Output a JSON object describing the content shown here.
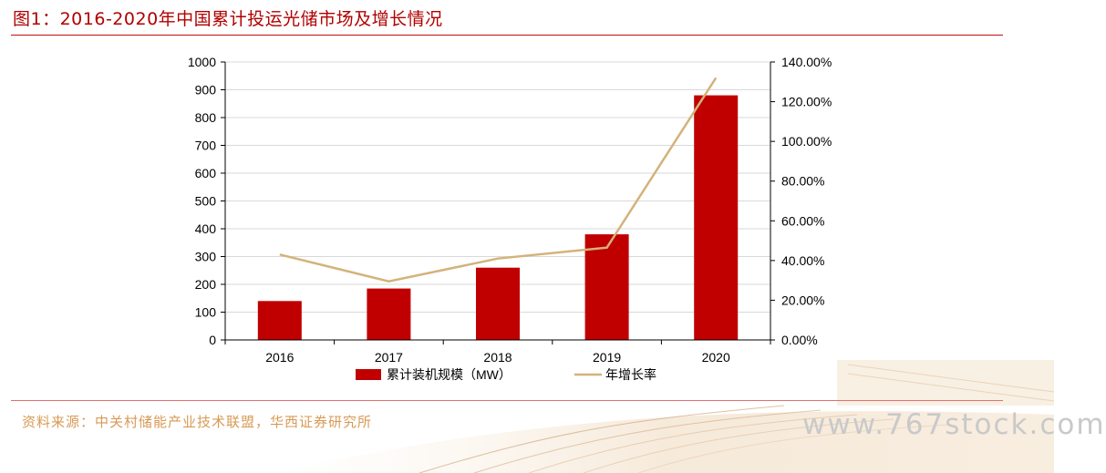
{
  "header": {
    "title": "图1：2016-2020年中国累计投运光储市场及增长情况"
  },
  "footer": {
    "source": "资料来源：中关村储能产业技术联盟，华西证券研究所",
    "watermark": "www.767stock.com"
  },
  "colors": {
    "bar": "#c00000",
    "line": "#d3b37a",
    "title": "#b10000"
  },
  "chart_data": {
    "type": "bar",
    "categories": [
      "2016",
      "2017",
      "2018",
      "2019",
      "2020"
    ],
    "series": [
      {
        "name": "累计装机规模（MW）",
        "type": "bar",
        "axis": "left",
        "values": [
          140,
          185,
          260,
          380,
          880
        ]
      },
      {
        "name": "年增长率",
        "type": "line",
        "axis": "right",
        "values": [
          0.43,
          0.295,
          0.41,
          0.465,
          1.32
        ]
      }
    ],
    "y_left": {
      "min": 0,
      "max": 1000,
      "ticks": [
        "0",
        "100",
        "200",
        "300",
        "400",
        "500",
        "600",
        "700",
        "800",
        "900",
        "1000"
      ]
    },
    "y_right": {
      "min": 0,
      "max": 1.4,
      "ticks": [
        "0.00%",
        "20.00%",
        "40.00%",
        "60.00%",
        "80.00%",
        "100.00%",
        "120.00%",
        "140.00%"
      ]
    },
    "legend": {
      "placement": "bottom",
      "items": [
        "累计装机规模（MW）",
        "年增长率"
      ]
    },
    "grid": true
  }
}
